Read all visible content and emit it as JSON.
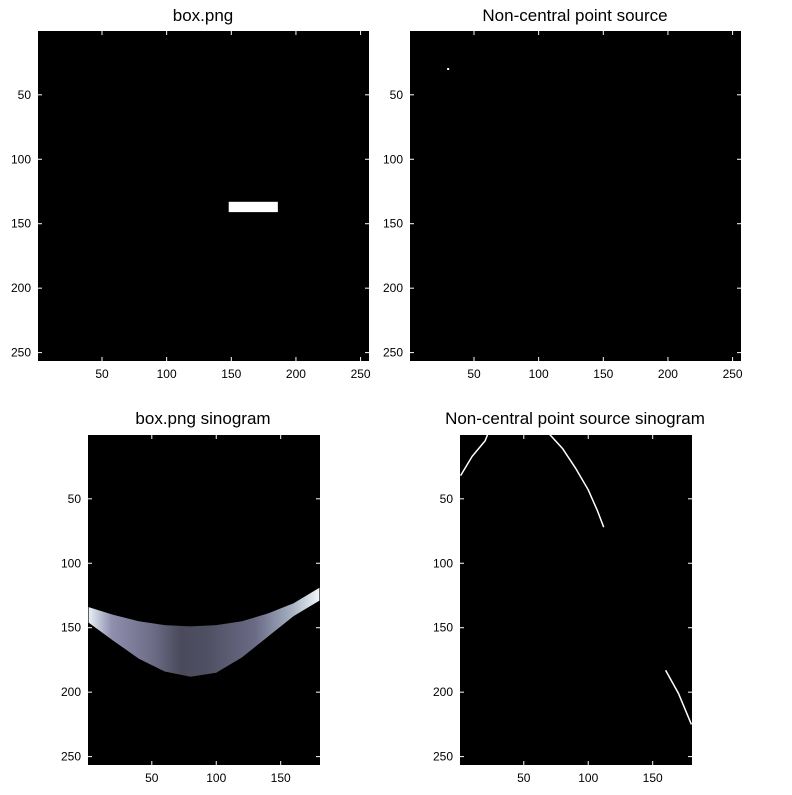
{
  "chart_data": [
    {
      "type": "heatmap",
      "title": "box.png",
      "content": "box",
      "colormap": "gray",
      "xlim": [
        0.5,
        256.5
      ],
      "ylim": [
        0.5,
        256.5
      ],
      "xticks": [
        50,
        100,
        150,
        200,
        250
      ],
      "yticks": [
        50,
        100,
        150,
        200,
        250
      ],
      "box": {
        "x": [
          148,
          186
        ],
        "y": [
          133,
          141
        ],
        "value": 1
      }
    },
    {
      "type": "heatmap",
      "title": "Non-central point source",
      "content": "point",
      "colormap": "gray",
      "xlim": [
        0.5,
        256.5
      ],
      "ylim": [
        0.5,
        256.5
      ],
      "xticks": [
        50,
        100,
        150,
        200,
        250
      ],
      "yticks": [
        50,
        100,
        150,
        200,
        250
      ],
      "point": {
        "x": 30,
        "y": 30,
        "value": 1
      }
    },
    {
      "type": "heatmap",
      "title": "box.png sinogram",
      "content": "box-sinogram",
      "colormap": "bone",
      "xlim": [
        0.5,
        180.5
      ],
      "ylim": [
        0.5,
        256.5
      ],
      "xticks": [
        50,
        100,
        150
      ],
      "yticks": [
        50,
        100,
        150,
        200,
        250
      ],
      "band_upper": [
        [
          1,
          134
        ],
        [
          20,
          140
        ],
        [
          40,
          145
        ],
        [
          60,
          148
        ],
        [
          80,
          149
        ],
        [
          100,
          148
        ],
        [
          120,
          145
        ],
        [
          140,
          139
        ],
        [
          160,
          131
        ],
        [
          180,
          119
        ]
      ],
      "band_lower": [
        [
          1,
          146
        ],
        [
          20,
          160
        ],
        [
          40,
          174
        ],
        [
          60,
          184
        ],
        [
          80,
          188
        ],
        [
          100,
          185
        ],
        [
          120,
          173
        ],
        [
          140,
          157
        ],
        [
          160,
          141
        ],
        [
          180,
          129
        ]
      ]
    },
    {
      "type": "heatmap",
      "title": "Non-central point source sinogram",
      "content": "point-sinogram",
      "colormap": "gray",
      "xlim": [
        0.5,
        180.5
      ],
      "ylim": [
        0.5,
        256.5
      ],
      "xticks": [
        50,
        100,
        150
      ],
      "yticks": [
        50,
        100,
        150,
        200,
        250
      ],
      "traces": [
        [
          [
            1,
            32
          ],
          [
            10,
            17
          ],
          [
            20,
            5
          ],
          [
            22,
            0
          ]
        ],
        [
          [
            70,
            0
          ],
          [
            80,
            11
          ],
          [
            90,
            26
          ],
          [
            100,
            43
          ],
          [
            107,
            59
          ],
          [
            112,
            72
          ]
        ],
        [
          [
            160,
            183
          ],
          [
            170,
            201
          ],
          [
            180,
            225
          ]
        ]
      ]
    }
  ]
}
